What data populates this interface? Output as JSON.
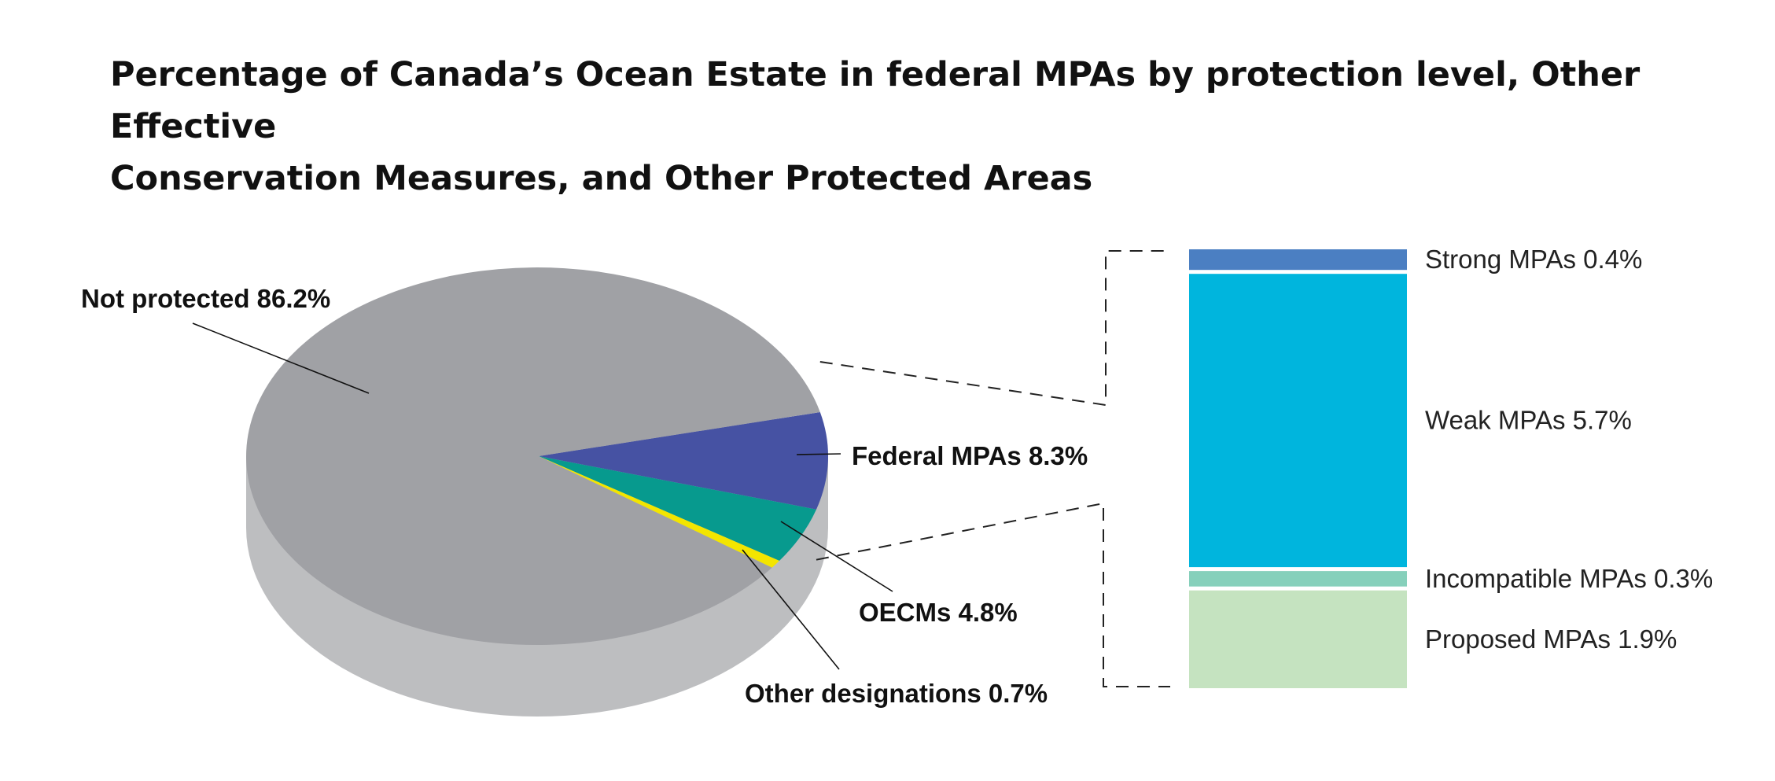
{
  "title_lines": [
    "Percentage of Canada’s Ocean Estate in federal MPAs by protection level, Other Effective",
    "Conservation Measures, and Other Protected Areas"
  ],
  "chart_data": [
    {
      "type": "pie",
      "title": "Percentage of Canada’s Ocean Estate in federal MPAs by protection level, Other Effective Conservation Measures, and Other Protected Areas",
      "unit": "%",
      "slices": [
        {
          "label": "Not protected 86.2%",
          "name": "Not protected",
          "value": 86.2,
          "color": "#a0a1a5"
        },
        {
          "label": "Federal MPAs 8.3%",
          "name": "Federal MPAs",
          "value": 8.3,
          "color": "#4652a3"
        },
        {
          "label": "OECMs 4.8%",
          "name": "OECMs",
          "value": 4.8,
          "color": "#079a8e"
        },
        {
          "label": "Other designations 0.7%",
          "name": "Other designations",
          "value": 0.7,
          "color": "#f3e500"
        }
      ]
    },
    {
      "type": "bar",
      "stacked": true,
      "breakdown_of": "Federal MPAs 8.3%",
      "unit": "%",
      "segments": [
        {
          "label": "Strong MPAs 0.4%",
          "name": "Strong MPAs",
          "value": 0.4,
          "color": "#4b7fc2"
        },
        {
          "label": "Weak MPAs 5.7%",
          "name": "Weak MPAs",
          "value": 5.7,
          "color": "#00b5dd"
        },
        {
          "label": "Incompatible MPAs 0.3%",
          "name": "Incompatible MPAs",
          "value": 0.3,
          "color": "#86d0bb"
        },
        {
          "label": "Proposed MPAs 1.9%",
          "name": "Proposed MPAs",
          "value": 1.9,
          "color": "#c5e3c0"
        }
      ]
    }
  ]
}
